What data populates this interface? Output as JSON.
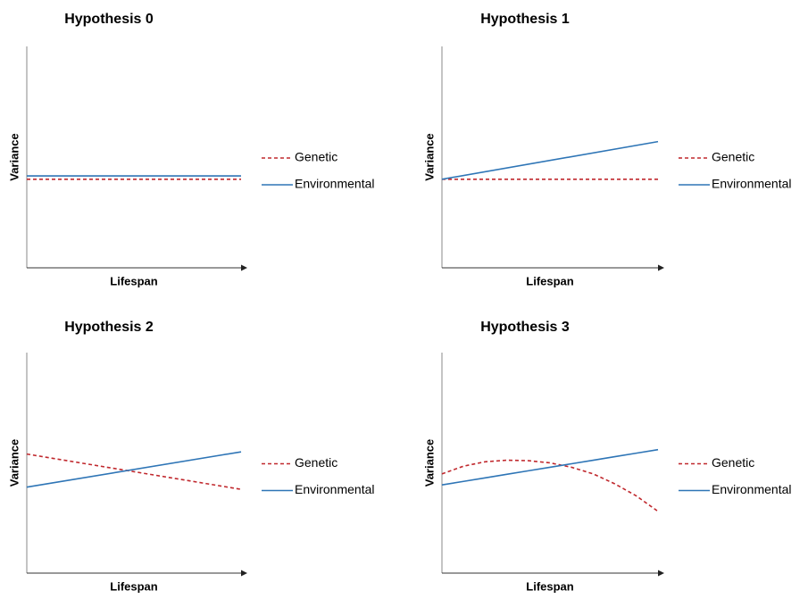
{
  "chart_data": [
    {
      "type": "line",
      "title": "Hypothesis 0",
      "x_label": "Lifespan",
      "y_label": "Variance",
      "legend": "right",
      "xlim": [
        0,
        10
      ],
      "ylim": [
        0,
        10
      ],
      "x": [
        0,
        10
      ],
      "series": [
        {
          "name": "Genetic",
          "color": "#c0282d",
          "linestyle": "dashed",
          "values": [
            4.0,
            4.0
          ]
        },
        {
          "name": "Environmental",
          "color": "#2e75b6",
          "linestyle": "solid",
          "values": [
            4.15,
            4.15
          ]
        }
      ]
    },
    {
      "type": "line",
      "title": "Hypothesis 1",
      "x_label": "Lifespan",
      "y_label": "Variance",
      "legend": "right",
      "xlim": [
        0,
        10
      ],
      "ylim": [
        0,
        10
      ],
      "x": [
        0,
        10
      ],
      "series": [
        {
          "name": "Genetic",
          "color": "#c0282d",
          "linestyle": "dashed",
          "values": [
            4.0,
            4.0
          ]
        },
        {
          "name": "Environmental",
          "color": "#2e75b6",
          "linestyle": "solid",
          "values": [
            4.0,
            5.7
          ]
        }
      ]
    },
    {
      "type": "line",
      "title": "Hypothesis 2",
      "x_label": "Lifespan",
      "y_label": "Variance",
      "legend": "right",
      "xlim": [
        0,
        10
      ],
      "ylim": [
        0,
        10
      ],
      "x": [
        0,
        10
      ],
      "series": [
        {
          "name": "Genetic",
          "color": "#c0282d",
          "linestyle": "dashed",
          "values": [
            5.4,
            3.8
          ]
        },
        {
          "name": "Environmental",
          "color": "#2e75b6",
          "linestyle": "solid",
          "values": [
            3.9,
            5.5
          ]
        }
      ]
    },
    {
      "type": "line",
      "title": "Hypothesis 3",
      "x_label": "Lifespan",
      "y_label": "Variance",
      "legend": "right",
      "xlim": [
        0,
        10
      ],
      "ylim": [
        0,
        10
      ],
      "x": [
        0,
        1,
        2,
        3,
        4,
        5,
        6,
        7,
        8,
        9,
        10
      ],
      "series": [
        {
          "name": "Genetic",
          "color": "#c0282d",
          "linestyle": "dashed",
          "values": [
            4.5,
            4.85,
            5.05,
            5.12,
            5.1,
            5.0,
            4.8,
            4.5,
            4.05,
            3.5,
            2.8
          ]
        },
        {
          "name": "Environmental",
          "color": "#2e75b6",
          "linestyle": "solid",
          "values": [
            4.0,
            4.16,
            4.32,
            4.48,
            4.64,
            4.8,
            4.96,
            5.12,
            5.28,
            5.44,
            5.6
          ]
        }
      ]
    }
  ]
}
